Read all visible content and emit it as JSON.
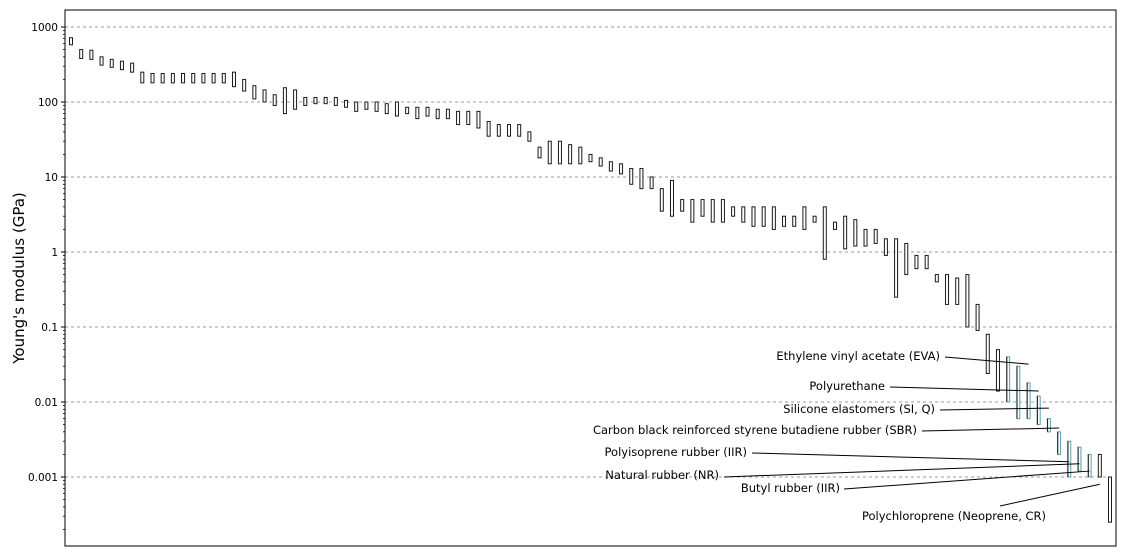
{
  "chart_data": {
    "type": "range-bar",
    "title": "",
    "xlabel": "",
    "ylabel": "Young's modulus (GPa)",
    "yscale": "log",
    "ylim": [
      0.0002,
      1500
    ],
    "yticks": [
      {
        "value": 1000,
        "label": "1000"
      },
      {
        "value": 100,
        "label": "100"
      },
      {
        "value": 10,
        "label": "10"
      },
      {
        "value": 1,
        "label": "1"
      },
      {
        "value": 0.1,
        "label": "0.1"
      },
      {
        "value": 0.01,
        "label": "0.01"
      },
      {
        "value": 0.001,
        "label": "0.001"
      }
    ],
    "grid": "horizontal-dashed",
    "ranges": [
      [
        580,
        720
      ],
      [
        380,
        500
      ],
      [
        370,
        490
      ],
      [
        310,
        400
      ],
      [
        290,
        370
      ],
      [
        270,
        350
      ],
      [
        250,
        330
      ],
      [
        180,
        250
      ],
      [
        180,
        240
      ],
      [
        180,
        240
      ],
      [
        180,
        240
      ],
      [
        180,
        240
      ],
      [
        180,
        240
      ],
      [
        180,
        240
      ],
      [
        180,
        240
      ],
      [
        180,
        240
      ],
      [
        160,
        250
      ],
      [
        140,
        200
      ],
      [
        110,
        165
      ],
      [
        100,
        145
      ],
      [
        90,
        125
      ],
      [
        70,
        155
      ],
      [
        80,
        145
      ],
      [
        90,
        115
      ],
      [
        95,
        115
      ],
      [
        95,
        115
      ],
      [
        90,
        115
      ],
      [
        85,
        105
      ],
      [
        75,
        100
      ],
      [
        80,
        100
      ],
      [
        75,
        100
      ],
      [
        70,
        95
      ],
      [
        65,
        100
      ],
      [
        70,
        85
      ],
      [
        60,
        85
      ],
      [
        65,
        85
      ],
      [
        60,
        80
      ],
      [
        60,
        80
      ],
      [
        50,
        75
      ],
      [
        50,
        75
      ],
      [
        45,
        75
      ],
      [
        35,
        55
      ],
      [
        35,
        50
      ],
      [
        35,
        50
      ],
      [
        35,
        50
      ],
      [
        30,
        40
      ],
      [
        18,
        25
      ],
      [
        15,
        30
      ],
      [
        15,
        30
      ],
      [
        15,
        27
      ],
      [
        15,
        25
      ],
      [
        16,
        20
      ],
      [
        14,
        18
      ],
      [
        12,
        16
      ],
      [
        11,
        15
      ],
      [
        8,
        13
      ],
      [
        7,
        13
      ],
      [
        7,
        10
      ],
      [
        3.5,
        7
      ],
      [
        3,
        9
      ],
      [
        3.5,
        5
      ],
      [
        2.5,
        5
      ],
      [
        3,
        5
      ],
      [
        2.5,
        5
      ],
      [
        2.5,
        5
      ],
      [
        3,
        4
      ],
      [
        2.5,
        4
      ],
      [
        2.2,
        4
      ],
      [
        2.2,
        4
      ],
      [
        2,
        4
      ],
      [
        2.2,
        3
      ],
      [
        2.2,
        3
      ],
      [
        2,
        4
      ],
      [
        2.5,
        3
      ],
      [
        0.8,
        4
      ],
      [
        2,
        2.5
      ],
      [
        1.1,
        3
      ],
      [
        1.2,
        2.7
      ],
      [
        1.2,
        2
      ],
      [
        1.3,
        2
      ],
      [
        0.9,
        1.5
      ],
      [
        0.25,
        1.5
      ],
      [
        0.5,
        1.3
      ],
      [
        0.6,
        0.9
      ],
      [
        0.6,
        0.9
      ],
      [
        0.4,
        0.5
      ],
      [
        0.2,
        0.5
      ],
      [
        0.2,
        0.45
      ],
      [
        0.1,
        0.5
      ],
      [
        0.09,
        0.2
      ],
      [
        0.024,
        0.08
      ],
      [
        0.014,
        0.05
      ],
      [
        0.01,
        0.04
      ],
      [
        0.006,
        0.03
      ],
      [
        0.006,
        0.018
      ],
      [
        0.005,
        0.012
      ],
      [
        0.004,
        0.006
      ],
      [
        0.002,
        0.004
      ],
      [
        0.001,
        0.003
      ],
      [
        0.0012,
        0.0025
      ],
      [
        0.001,
        0.002
      ],
      [
        0.001,
        0.002
      ],
      [
        0.00025,
        0.001
      ]
    ],
    "highlighted_ranges": [
      {
        "index": 92,
        "color": "#5a9fae"
      },
      {
        "index": 93,
        "color": "#5a9fae"
      },
      {
        "index": 94,
        "color": "#5a9fae"
      },
      {
        "index": 95,
        "color": "#5a9fae"
      },
      {
        "index": 96,
        "color": "#5a9fae"
      },
      {
        "index": 97,
        "color": "#5a9fae"
      },
      {
        "index": 98,
        "color": "#5a9fae"
      },
      {
        "index": 99,
        "color": "#5a9fae"
      },
      {
        "index": 100,
        "color": "#5a9fae"
      }
    ],
    "annotations": [
      {
        "text": "Ethylene vinyl acetate (EVA)",
        "target_index": 94,
        "target_value": 0.032
      },
      {
        "text": "Polyurethane",
        "target_index": 95,
        "target_value": 0.014
      },
      {
        "text": "Silicone elastomers (SI, Q)",
        "target_index": 96,
        "target_value": 0.0083
      },
      {
        "text": "Carbon black reinforced styrene butadiene rubber (SBR)",
        "target_index": 97,
        "target_value": 0.0045
      },
      {
        "text": "Polyisoprene rubber (IIR)",
        "target_index": 98,
        "target_value": 0.0016
      },
      {
        "text": "Natural rubber (NR)",
        "target_index": 99,
        "target_value": 0.0015
      },
      {
        "text": "Butyl rubber (IIR)",
        "target_index": 100,
        "target_value": 0.0012
      },
      {
        "text": "Polychloroprene (Neoprene, CR)",
        "target_index": 101,
        "target_value": 0.0008
      }
    ],
    "colors": {
      "bar_stroke": "#1a1a1a",
      "bar_fill": "#ffffff",
      "highlight": "#5a9fae",
      "grid": "#999999",
      "frame": "#000000"
    }
  }
}
